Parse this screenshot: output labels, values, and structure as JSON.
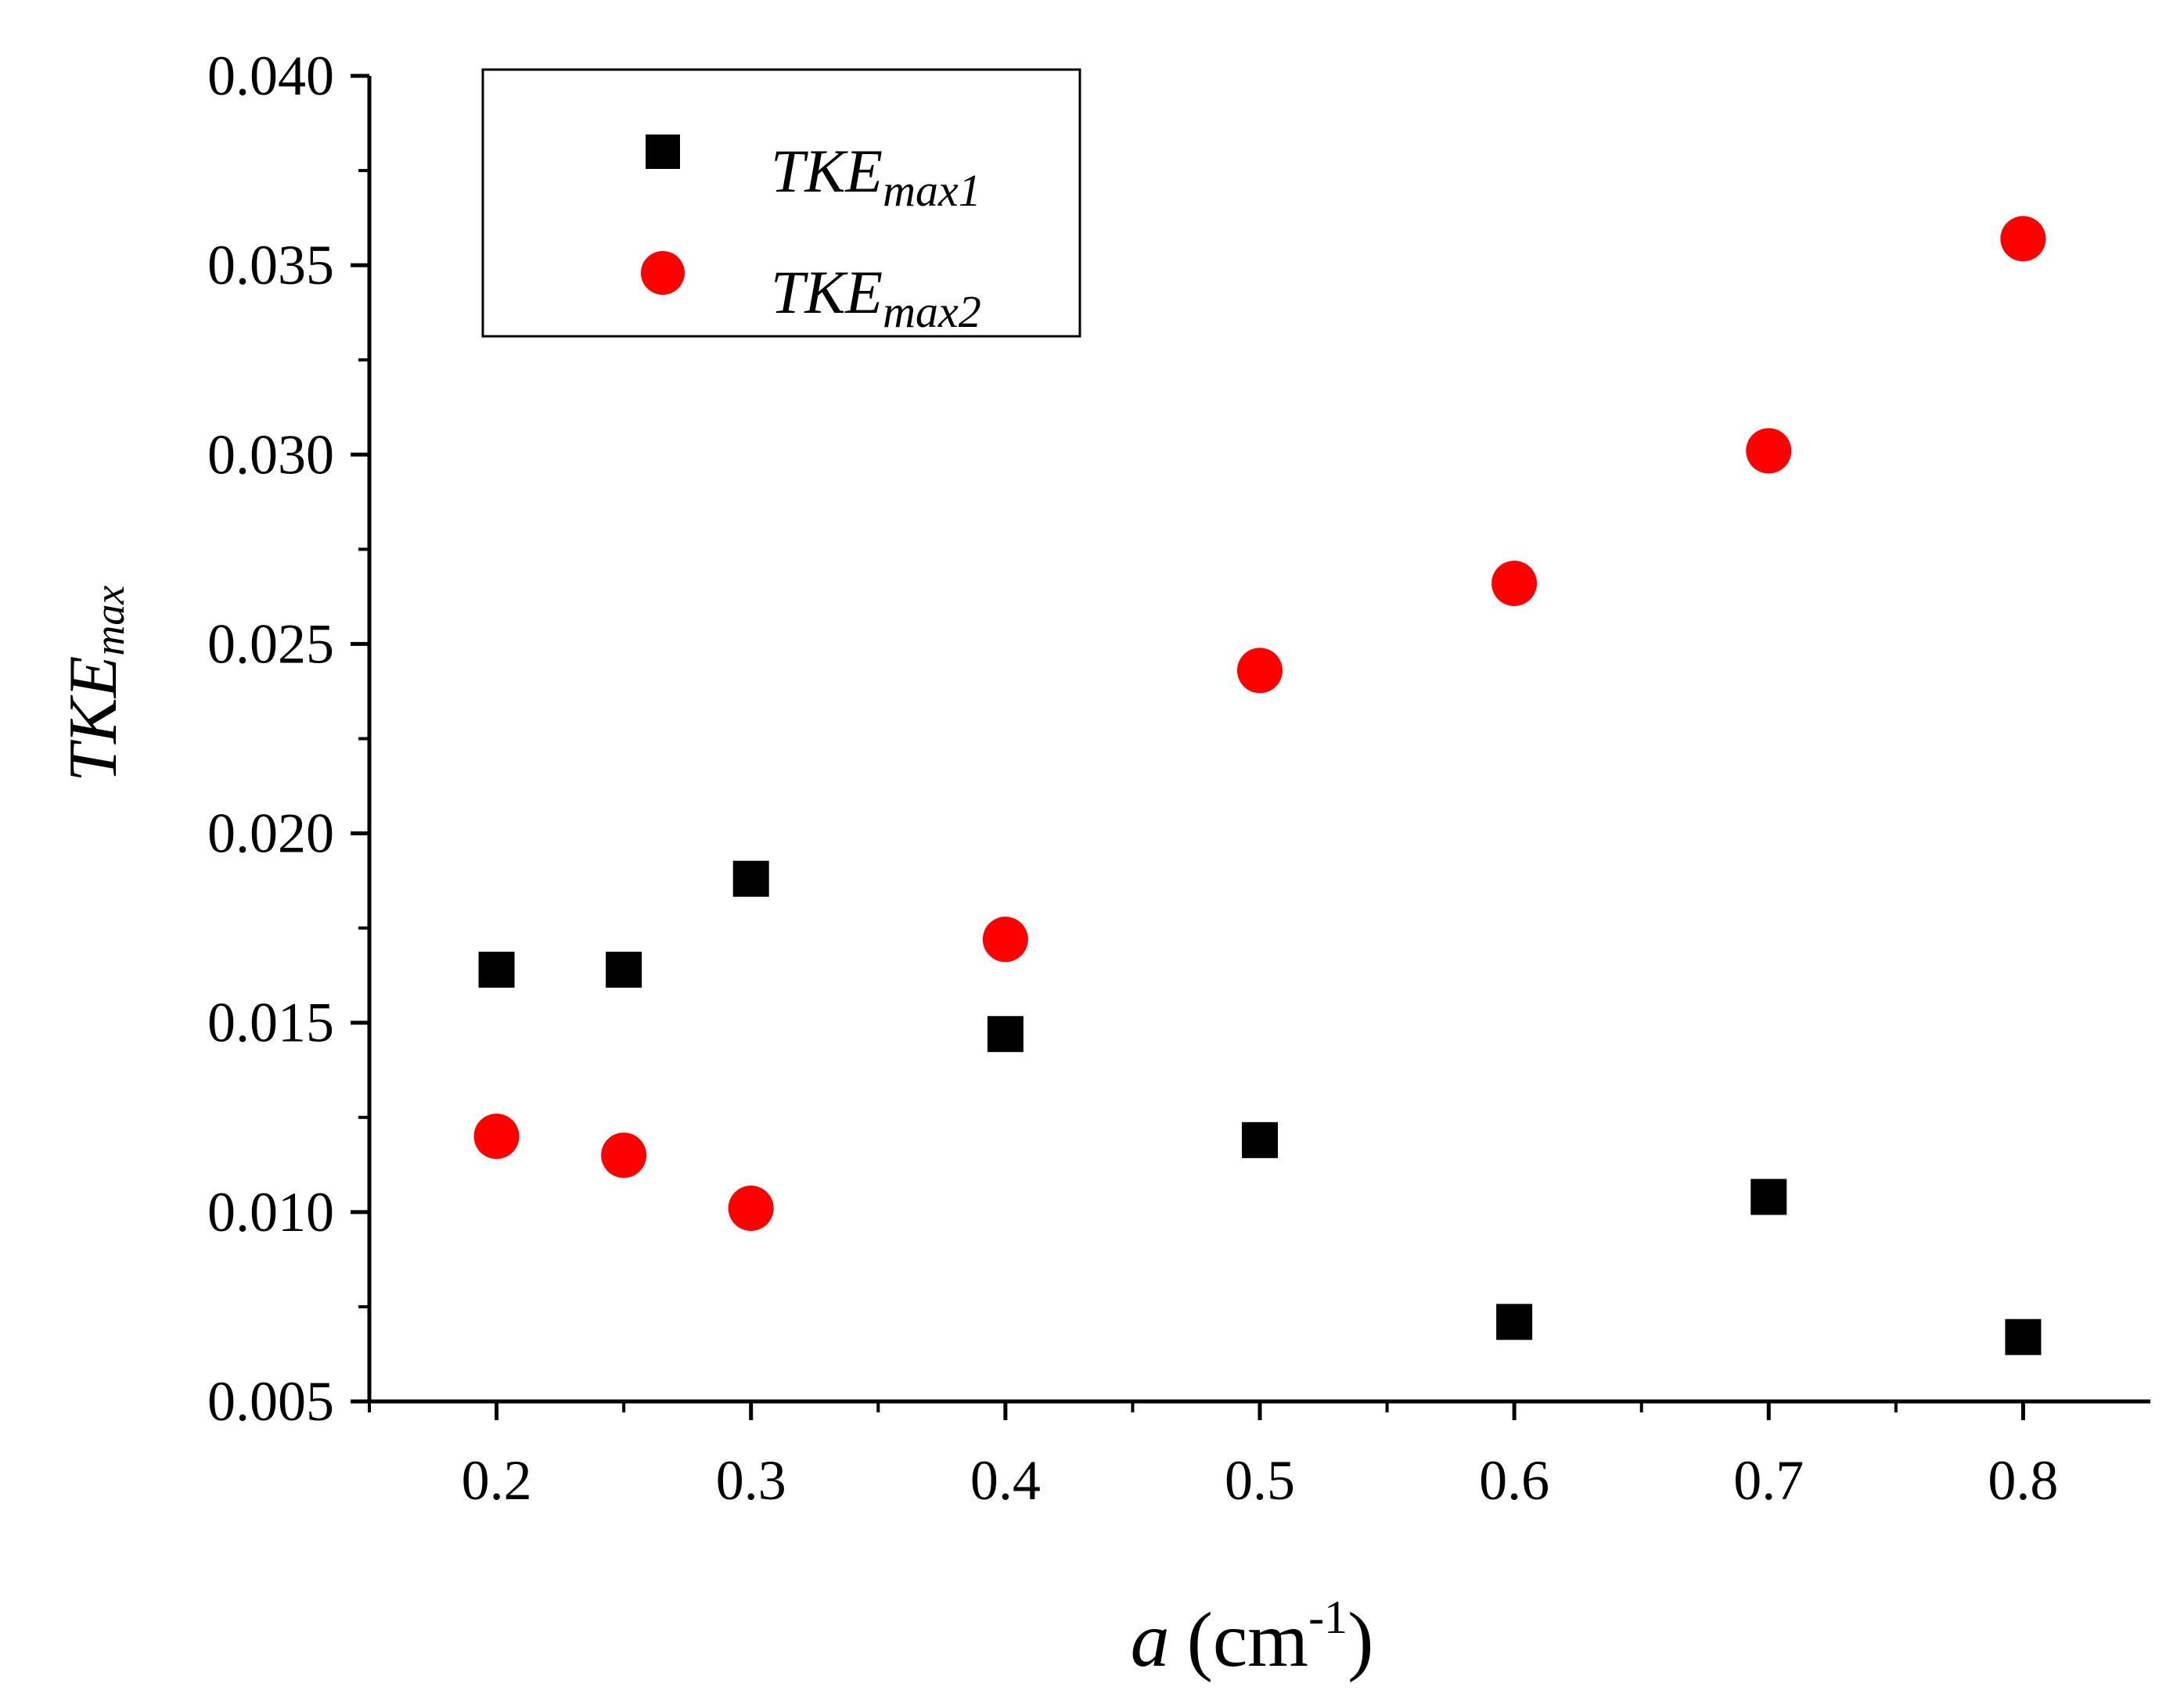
{
  "chart_data": {
    "type": "scatter",
    "title": "",
    "xlabel": {
      "var": "a",
      "unit": "(cm",
      "exp": "-1",
      "close": ")"
    },
    "ylabel": {
      "main": "TKE",
      "sub": "max"
    },
    "xlim": [
      0.15,
      0.85
    ],
    "ylim": [
      0.005,
      0.04
    ],
    "xticks": [
      0.2,
      0.3,
      0.4,
      0.5,
      0.6,
      0.7,
      0.8
    ],
    "xtick_labels": [
      "0.2",
      "0.3",
      "0.4",
      "0.5",
      "0.6",
      "0.7",
      "0.8"
    ],
    "yticks": [
      0.005,
      0.01,
      0.015,
      0.02,
      0.025,
      0.03,
      0.035,
      0.04
    ],
    "ytick_labels": [
      "0.005",
      "0.010",
      "0.015",
      "0.020",
      "0.025",
      "0.030",
      "0.035",
      "0.040"
    ],
    "grid": false,
    "legend_position": "top-left",
    "series": [
      {
        "name": "TKE_max1",
        "label_main": "TKE",
        "label_sub": "max1",
        "marker": "square",
        "color": "#000000",
        "x": [
          0.2,
          0.25,
          0.3,
          0.4,
          0.5,
          0.6,
          0.7,
          0.8
        ],
        "y": [
          0.0164,
          0.0164,
          0.0188,
          0.0147,
          0.0119,
          0.0071,
          0.0104,
          0.0067
        ]
      },
      {
        "name": "TKE_max2",
        "label_main": "TKE",
        "label_sub": "max2",
        "marker": "circle",
        "color": "#ff0000",
        "x": [
          0.2,
          0.25,
          0.3,
          0.4,
          0.5,
          0.6,
          0.7,
          0.8
        ],
        "y": [
          0.012,
          0.0115,
          0.0101,
          0.0172,
          0.0243,
          0.0266,
          0.0301,
          0.0357
        ]
      }
    ]
  }
}
